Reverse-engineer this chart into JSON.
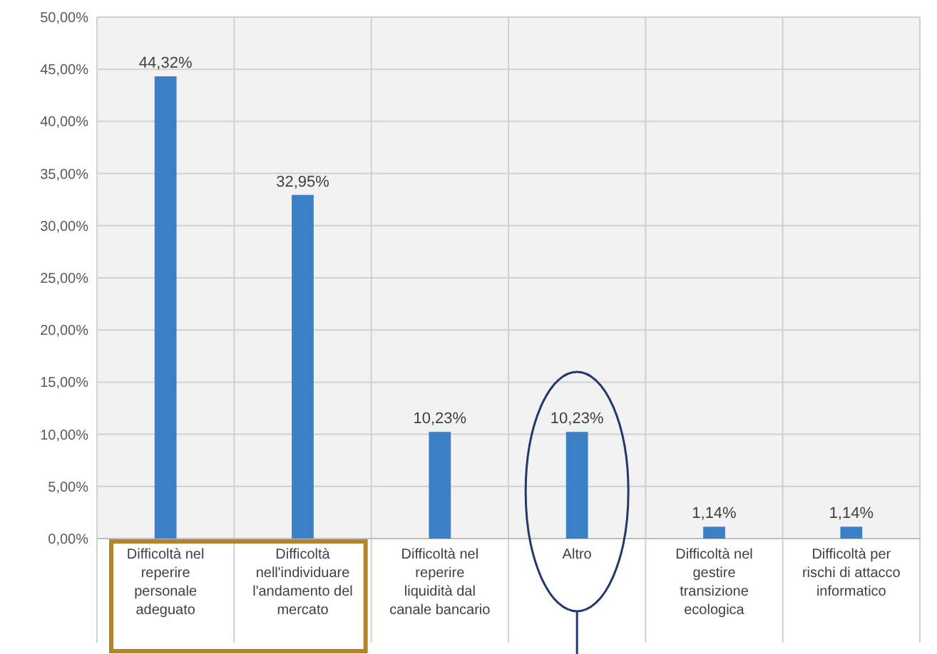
{
  "chart_data": {
    "type": "bar",
    "categories": [
      "Difficoltà nel reperire personale adeguato",
      "Difficoltà nell'individuare l'andamento del mercato",
      "Difficoltà nel reperire liquidità dal canale bancario",
      "Altro",
      "Difficoltà nel gestire transizione ecologica",
      "Difficoltà per rischi di attacco informatico"
    ],
    "values": [
      44.32,
      32.95,
      10.23,
      10.23,
      1.14,
      1.14
    ],
    "value_labels": [
      "44,32%",
      "32,95%",
      "10,23%",
      "10,23%",
      "1,14%",
      "1,14%"
    ],
    "color": "#3b7fc6",
    "ylim": [
      0,
      50
    ],
    "yticks": [
      {
        "value": 0,
        "label": "0,00%"
      },
      {
        "value": 5,
        "label": "5,00%"
      },
      {
        "value": 10,
        "label": "10,00%"
      },
      {
        "value": 15,
        "label": "15,00%"
      },
      {
        "value": 20,
        "label": "20,00%"
      },
      {
        "value": 25,
        "label": "25,00%"
      },
      {
        "value": 30,
        "label": "30,00%"
      },
      {
        "value": 35,
        "label": "35,00%"
      },
      {
        "value": 40,
        "label": "40,00%"
      },
      {
        "value": 45,
        "label": "45,00%"
      },
      {
        "value": 50,
        "label": "50,00%"
      }
    ],
    "grid": true
  }
}
